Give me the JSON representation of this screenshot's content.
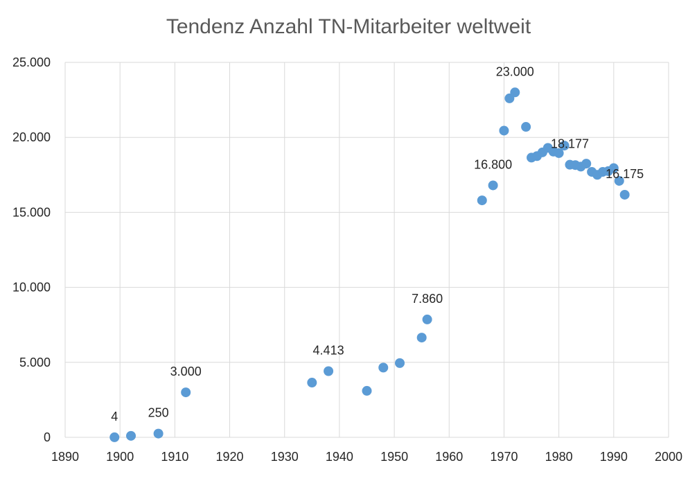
{
  "chart_data": {
    "type": "scatter",
    "title": "Tendenz Anzahl TN-Mitarbeiter weltweit",
    "xlabel": "",
    "ylabel": "",
    "xlim": [
      1890,
      2000
    ],
    "ylim": [
      0,
      25000
    ],
    "grid": true,
    "legend": "none",
    "color": "#5b9bd5",
    "x_ticks": [
      "1890",
      "1900",
      "1910",
      "1920",
      "1930",
      "1940",
      "1950",
      "1960",
      "1970",
      "1980",
      "1990",
      "2000"
    ],
    "y_ticks": [
      "0",
      "5.000",
      "10.000",
      "15.000",
      "20.000",
      "25.000"
    ],
    "series": [
      {
        "points": [
          {
            "x": 1899,
            "y": 4
          },
          {
            "x": 1902,
            "y": 100
          },
          {
            "x": 1907,
            "y": 250
          },
          {
            "x": 1912,
            "y": 3000
          },
          {
            "x": 1935,
            "y": 3650
          },
          {
            "x": 1938,
            "y": 4413
          },
          {
            "x": 1945,
            "y": 3100
          },
          {
            "x": 1948,
            "y": 4650
          },
          {
            "x": 1951,
            "y": 4950
          },
          {
            "x": 1955,
            "y": 6650
          },
          {
            "x": 1956,
            "y": 7860
          },
          {
            "x": 1966,
            "y": 15800
          },
          {
            "x": 1968,
            "y": 16800
          },
          {
            "x": 1970,
            "y": 20450
          },
          {
            "x": 1971,
            "y": 22600
          },
          {
            "x": 1972,
            "y": 23000
          },
          {
            "x": 1974,
            "y": 20700
          },
          {
            "x": 1975,
            "y": 18650
          },
          {
            "x": 1976,
            "y": 18750
          },
          {
            "x": 1977,
            "y": 19000
          },
          {
            "x": 1978,
            "y": 19300
          },
          {
            "x": 1979,
            "y": 19050
          },
          {
            "x": 1980,
            "y": 18950
          },
          {
            "x": 1981,
            "y": 19450
          },
          {
            "x": 1982,
            "y": 18177
          },
          {
            "x": 1983,
            "y": 18150
          },
          {
            "x": 1984,
            "y": 18050
          },
          {
            "x": 1985,
            "y": 18250
          },
          {
            "x": 1986,
            "y": 17700
          },
          {
            "x": 1987,
            "y": 17500
          },
          {
            "x": 1988,
            "y": 17700
          },
          {
            "x": 1989,
            "y": 17750
          },
          {
            "x": 1990,
            "y": 17950
          },
          {
            "x": 1991,
            "y": 17100
          },
          {
            "x": 1992,
            "y": 16175
          }
        ]
      }
    ],
    "data_labels": [
      {
        "x": 1899,
        "y": 4,
        "text": "4"
      },
      {
        "x": 1907,
        "y": 250,
        "text": "250"
      },
      {
        "x": 1912,
        "y": 3000,
        "text": "3.000"
      },
      {
        "x": 1938,
        "y": 4413,
        "text": "4.413"
      },
      {
        "x": 1956,
        "y": 7860,
        "text": "7.860"
      },
      {
        "x": 1968,
        "y": 16800,
        "text": "16.800"
      },
      {
        "x": 1972,
        "y": 23000,
        "text": "23.000"
      },
      {
        "x": 1982,
        "y": 18177,
        "text": "18.177"
      },
      {
        "x": 1992,
        "y": 16175,
        "text": "16.175"
      }
    ]
  }
}
